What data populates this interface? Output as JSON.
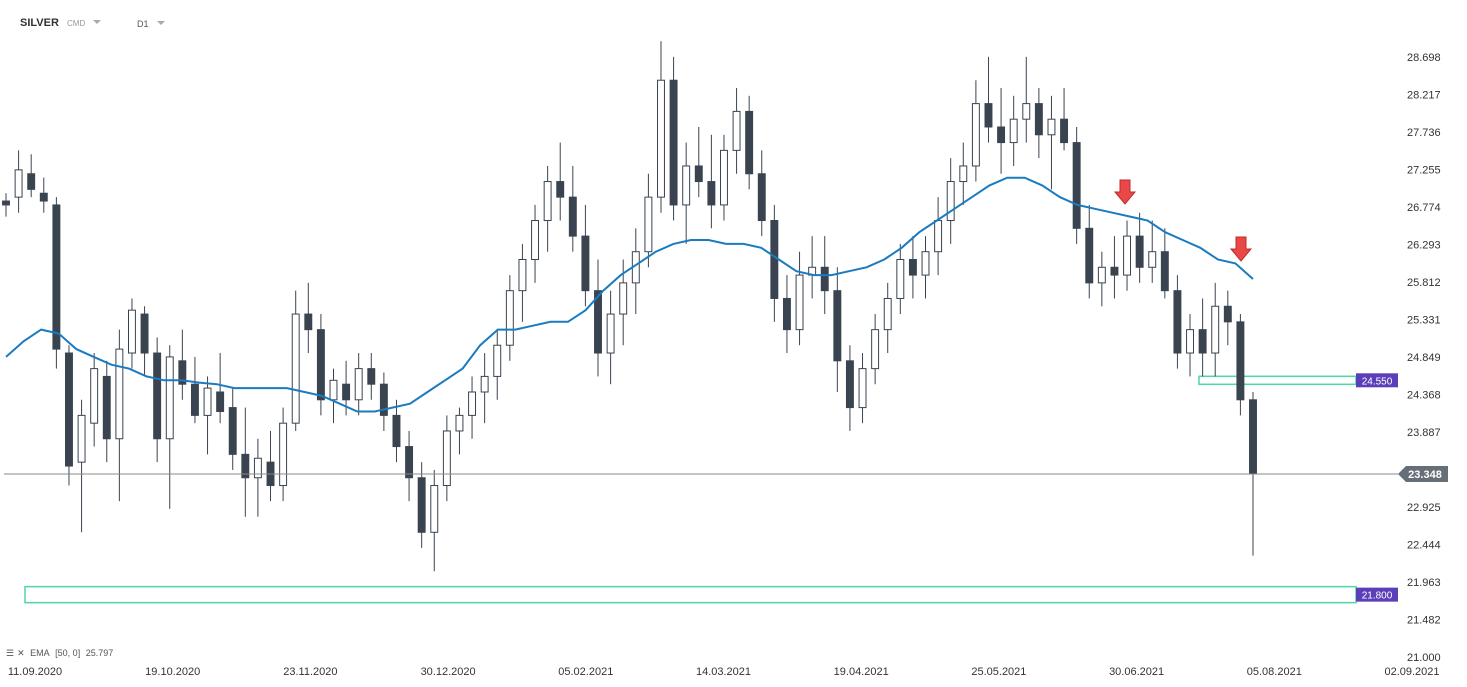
{
  "header": {
    "symbol": "SILVER",
    "symbol_type": "CMD",
    "timeframe": "D1"
  },
  "indicator": {
    "settings_icon": "list-icon",
    "close_icon": "close-icon",
    "label": "EMA",
    "params": "[50, 0]",
    "value": "25.797"
  },
  "colors": {
    "candle": "#3a4450",
    "ema": "#1a7bc0",
    "zone": "#4fd6a8",
    "level_badge": "#5a3fb8",
    "price_badge": "#666f78",
    "arrow": "#e84848"
  },
  "chart_data": {
    "type": "candlestick",
    "ylim": [
      21.0,
      29.0
    ],
    "y_ticks": [
      "28.698",
      "28.217",
      "27.736",
      "27.255",
      "26.774",
      "26.293",
      "25.812",
      "25.331",
      "24.849",
      "24.368",
      "23.887",
      "23.406",
      "22.925",
      "22.444",
      "21.963",
      "21.482",
      "21.000"
    ],
    "x_ticks": [
      "11.09.2020",
      "19.10.2020",
      "23.11.2020",
      "30.12.2020",
      "05.02.2021",
      "14.03.2021",
      "19.04.2021",
      "25.05.2021",
      "30.06.2021",
      "05.08.2021",
      "02.09.2021"
    ],
    "current_price": "23.348",
    "levels": [
      {
        "label": "24.550",
        "value": 24.55
      },
      {
        "label": "21.800",
        "value": 21.8
      }
    ],
    "ema_50": [
      24.85,
      25.05,
      25.2,
      25.15,
      24.95,
      24.85,
      24.75,
      24.7,
      24.6,
      24.55,
      24.55,
      24.52,
      24.5,
      24.45,
      24.45,
      24.45,
      24.45,
      24.4,
      24.35,
      24.25,
      24.15,
      24.15,
      24.2,
      24.25,
      24.4,
      24.55,
      24.7,
      25.0,
      25.2,
      25.2,
      25.25,
      25.3,
      25.3,
      25.45,
      25.7,
      25.9,
      26.05,
      26.2,
      26.3,
      26.35,
      26.35,
      26.3,
      26.3,
      26.25,
      26.1,
      25.95,
      25.9,
      25.9,
      25.95,
      26.0,
      26.1,
      26.25,
      26.45,
      26.6,
      26.75,
      26.9,
      27.05,
      27.15,
      27.15,
      27.05,
      26.9,
      26.8,
      26.75,
      26.7,
      26.65,
      26.6,
      26.45,
      26.35,
      26.25,
      26.1,
      26.05,
      25.85
    ],
    "candles": [
      [
        26.85,
        26.95,
        26.65,
        26.8
      ],
      [
        26.9,
        27.5,
        26.7,
        27.25
      ],
      [
        27.2,
        27.45,
        26.9,
        27.0
      ],
      [
        26.95,
        27.15,
        26.7,
        26.85
      ],
      [
        26.8,
        26.9,
        24.7,
        24.95
      ],
      [
        24.9,
        25.0,
        23.2,
        23.45
      ],
      [
        23.5,
        24.3,
        22.6,
        24.1
      ],
      [
        24.0,
        24.9,
        23.7,
        24.7
      ],
      [
        24.6,
        24.8,
        23.5,
        23.8
      ],
      [
        23.8,
        25.2,
        23.0,
        24.95
      ],
      [
        24.9,
        25.6,
        24.7,
        25.45
      ],
      [
        25.4,
        25.5,
        24.6,
        24.9
      ],
      [
        24.9,
        25.1,
        23.5,
        23.8
      ],
      [
        23.8,
        25.0,
        22.9,
        24.85
      ],
      [
        24.8,
        25.2,
        24.3,
        24.5
      ],
      [
        24.5,
        24.85,
        24.0,
        24.1
      ],
      [
        24.1,
        24.6,
        23.6,
        24.45
      ],
      [
        24.4,
        24.9,
        24.0,
        24.15
      ],
      [
        24.2,
        24.45,
        23.4,
        23.6
      ],
      [
        23.6,
        24.2,
        22.8,
        23.3
      ],
      [
        23.3,
        23.8,
        22.8,
        23.55
      ],
      [
        23.5,
        23.9,
        23.0,
        23.2
      ],
      [
        23.2,
        24.2,
        23.0,
        24.0
      ],
      [
        24.0,
        25.7,
        23.9,
        25.4
      ],
      [
        25.4,
        25.8,
        24.9,
        25.2
      ],
      [
        25.2,
        25.4,
        24.1,
        24.3
      ],
      [
        24.3,
        24.7,
        24.0,
        24.55
      ],
      [
        24.5,
        24.8,
        24.1,
        24.3
      ],
      [
        24.3,
        24.9,
        24.1,
        24.7
      ],
      [
        24.7,
        24.9,
        24.3,
        24.5
      ],
      [
        24.5,
        24.65,
        23.9,
        24.1
      ],
      [
        24.1,
        24.3,
        23.5,
        23.7
      ],
      [
        23.7,
        23.9,
        23.0,
        23.3
      ],
      [
        23.3,
        23.5,
        22.4,
        22.6
      ],
      [
        22.6,
        23.4,
        22.1,
        23.2
      ],
      [
        23.2,
        24.1,
        23.0,
        23.9
      ],
      [
        23.9,
        24.2,
        23.6,
        24.1
      ],
      [
        24.1,
        24.6,
        23.8,
        24.4
      ],
      [
        24.4,
        24.9,
        24.0,
        24.6
      ],
      [
        24.6,
        25.2,
        24.3,
        25.0
      ],
      [
        25.0,
        25.9,
        24.8,
        25.7
      ],
      [
        25.7,
        26.3,
        25.3,
        26.1
      ],
      [
        26.1,
        26.8,
        25.8,
        26.6
      ],
      [
        26.6,
        27.3,
        26.2,
        27.1
      ],
      [
        27.1,
        27.6,
        26.6,
        26.9
      ],
      [
        26.9,
        27.3,
        26.2,
        26.4
      ],
      [
        26.4,
        26.8,
        25.5,
        25.7
      ],
      [
        25.7,
        26.1,
        24.6,
        24.9
      ],
      [
        24.9,
        25.7,
        24.5,
        25.4
      ],
      [
        25.4,
        26.1,
        25.0,
        25.8
      ],
      [
        25.8,
        26.5,
        25.4,
        26.2
      ],
      [
        26.2,
        27.2,
        26.0,
        26.9
      ],
      [
        26.9,
        28.9,
        26.7,
        28.4
      ],
      [
        28.4,
        28.7,
        26.6,
        26.8
      ],
      [
        26.8,
        27.6,
        26.3,
        27.3
      ],
      [
        27.3,
        27.8,
        26.9,
        27.1
      ],
      [
        27.1,
        27.7,
        26.5,
        26.8
      ],
      [
        26.8,
        27.7,
        26.6,
        27.5
      ],
      [
        27.5,
        28.3,
        27.2,
        28.0
      ],
      [
        28.0,
        28.2,
        27.0,
        27.2
      ],
      [
        27.2,
        27.5,
        26.4,
        26.6
      ],
      [
        26.6,
        26.8,
        25.3,
        25.6
      ],
      [
        25.6,
        25.9,
        24.9,
        25.2
      ],
      [
        25.2,
        26.2,
        25.0,
        25.9
      ],
      [
        25.9,
        26.4,
        25.6,
        26.0
      ],
      [
        26.0,
        26.4,
        25.4,
        25.7
      ],
      [
        25.7,
        26.0,
        24.4,
        24.8
      ],
      [
        24.8,
        25.0,
        23.9,
        24.2
      ],
      [
        24.2,
        24.9,
        24.0,
        24.7
      ],
      [
        24.7,
        25.4,
        24.5,
        25.2
      ],
      [
        25.2,
        25.8,
        24.9,
        25.6
      ],
      [
        25.6,
        26.3,
        25.4,
        26.1
      ],
      [
        26.1,
        26.4,
        25.6,
        25.9
      ],
      [
        25.9,
        26.4,
        25.6,
        26.2
      ],
      [
        26.2,
        26.9,
        25.9,
        26.6
      ],
      [
        26.6,
        27.4,
        26.3,
        27.1
      ],
      [
        27.1,
        27.6,
        26.8,
        27.3
      ],
      [
        27.3,
        28.4,
        27.1,
        28.1
      ],
      [
        28.1,
        28.7,
        27.6,
        27.8
      ],
      [
        27.8,
        28.3,
        27.2,
        27.6
      ],
      [
        27.6,
        28.2,
        27.3,
        27.9
      ],
      [
        27.9,
        28.7,
        27.6,
        28.1
      ],
      [
        28.1,
        28.3,
        27.4,
        27.7
      ],
      [
        27.7,
        28.2,
        27.0,
        27.9
      ],
      [
        27.9,
        28.3,
        27.5,
        27.6
      ],
      [
        27.6,
        27.8,
        26.3,
        26.5
      ],
      [
        26.5,
        26.8,
        25.6,
        25.8
      ],
      [
        25.8,
        26.2,
        25.5,
        26.0
      ],
      [
        26.0,
        26.4,
        25.6,
        25.9
      ],
      [
        25.9,
        26.6,
        25.7,
        26.4
      ],
      [
        26.4,
        26.7,
        25.8,
        26.0
      ],
      [
        26.0,
        26.6,
        25.8,
        26.2
      ],
      [
        26.2,
        26.5,
        25.6,
        25.7
      ],
      [
        25.7,
        25.9,
        24.7,
        24.9
      ],
      [
        24.9,
        25.4,
        24.6,
        25.2
      ],
      [
        25.2,
        25.6,
        24.6,
        24.9
      ],
      [
        24.9,
        25.8,
        24.6,
        25.5
      ],
      [
        25.5,
        25.7,
        25.0,
        25.3
      ],
      [
        25.3,
        25.4,
        24.1,
        24.3
      ],
      [
        24.3,
        24.4,
        22.3,
        23.348
      ]
    ]
  }
}
